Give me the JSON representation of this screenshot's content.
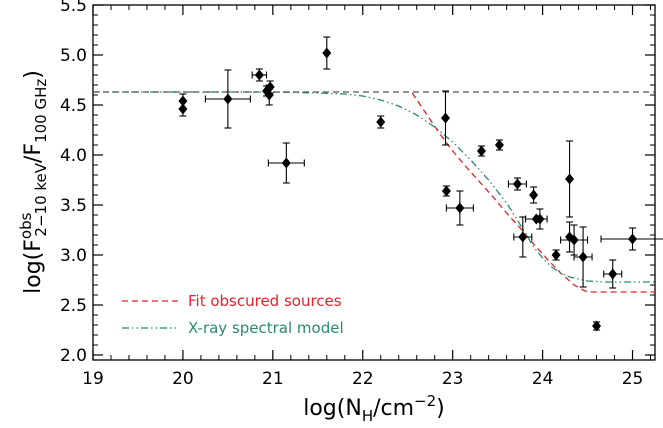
{
  "chart_data": {
    "type": "scatter",
    "xlabel": {
      "pre": "log(N",
      "sub": "H",
      "mid": "/cm",
      "sup": "−2",
      "post": ")"
    },
    "ylabel": {
      "pre": "log(F",
      "sup": "obs",
      "sub": "2−10 keV",
      "mid": "/F",
      "sub2": "100 GHz",
      "post": ")"
    },
    "xlim": [
      19,
      25.25
    ],
    "ylim": [
      1.95,
      5.5
    ],
    "xticks": [
      19,
      20,
      21,
      22,
      23,
      24,
      25
    ],
    "xtick_labels": [
      "19",
      "20",
      "21",
      "22",
      "23",
      "24",
      "25"
    ],
    "yticks": [
      2.0,
      2.5,
      3.0,
      3.5,
      4.0,
      4.5,
      5.0,
      5.5
    ],
    "ytick_labels": [
      "2.0",
      "2.5",
      "3.0",
      "3.5",
      "4.0",
      "4.5",
      "5.0",
      "5.5"
    ],
    "grid": false,
    "legend_position": "bottom-left",
    "colors": {
      "points": "#000000",
      "fit": "#e8202a",
      "model": "#2a8a74",
      "reference": "#555555"
    },
    "points": [
      {
        "x": 20.0,
        "y": 4.54,
        "yerr": 0.07
      },
      {
        "x": 20.0,
        "y": 4.46,
        "yerr": 0.07
      },
      {
        "x": 20.5,
        "y": 4.56,
        "xerr": 0.25,
        "yerr": 0.29
      },
      {
        "x": 20.85,
        "y": 4.8,
        "xerr": 0.08,
        "yerr": 0.06
      },
      {
        "x": 20.93,
        "y": 4.64,
        "yerr": 0.05
      },
      {
        "x": 20.97,
        "y": 4.68,
        "yerr": 0.06
      },
      {
        "x": 20.96,
        "y": 4.6,
        "yerr": 0.1
      },
      {
        "x": 21.15,
        "y": 3.92,
        "xerr": 0.2,
        "yerr": 0.2
      },
      {
        "x": 21.6,
        "y": 5.02,
        "yerr": 0.16
      },
      {
        "x": 22.2,
        "y": 4.33,
        "yerr": 0.06
      },
      {
        "x": 22.92,
        "y": 4.37,
        "yerr": 0.27
      },
      {
        "x": 22.93,
        "y": 3.64,
        "yerr": 0.05
      },
      {
        "x": 23.08,
        "y": 3.47,
        "xerr": 0.15,
        "yerr": 0.17
      },
      {
        "x": 23.32,
        "y": 4.04,
        "yerr": 0.05
      },
      {
        "x": 23.52,
        "y": 4.1,
        "yerr": 0.05
      },
      {
        "x": 23.72,
        "y": 3.71,
        "xerr": 0.1,
        "yerr": 0.06
      },
      {
        "x": 23.78,
        "y": 3.18,
        "xerr": 0.1,
        "yerr": 0.2
      },
      {
        "x": 23.9,
        "y": 3.6,
        "yerr": 0.08
      },
      {
        "x": 23.97,
        "y": 3.36,
        "yerr": 0.1
      },
      {
        "x": 23.93,
        "y": 3.36,
        "xerr": 0.12
      },
      {
        "x": 24.15,
        "y": 3.0,
        "yerr": 0.05
      },
      {
        "x": 24.3,
        "y": 3.76,
        "yerr": 0.38
      },
      {
        "x": 24.3,
        "y": 3.18,
        "yerr": 0.15
      },
      {
        "x": 24.35,
        "y": 3.15,
        "xerr": 0.15,
        "yerr": 0.15
      },
      {
        "x": 24.45,
        "y": 2.98,
        "xerr": 0.1,
        "yerr": 0.3
      },
      {
        "x": 24.6,
        "y": 2.29,
        "yerr": 0.04
      },
      {
        "x": 24.78,
        "y": 2.81,
        "xerr": 0.1,
        "yerr": 0.14
      },
      {
        "x": 25.0,
        "y": 3.16,
        "xerr": 0.35,
        "yerr": 0.11
      }
    ],
    "series": [
      {
        "name": "Fit obscured sources",
        "style": "dashed",
        "x": [
          22.55,
          22.7,
          22.85,
          23.0,
          23.15,
          23.3,
          23.45,
          23.6,
          23.75,
          23.9,
          24.05,
          24.2,
          24.35,
          24.45,
          24.5,
          25.25
        ],
        "y": [
          4.62,
          4.42,
          4.22,
          4.04,
          3.88,
          3.73,
          3.58,
          3.42,
          3.27,
          3.11,
          2.96,
          2.82,
          2.7,
          2.65,
          2.63,
          2.63
        ]
      },
      {
        "name": "X-ray spectral model",
        "style": "dash-dot-dot",
        "x": [
          19.0,
          20.0,
          21.0,
          21.5,
          21.8,
          22.0,
          22.2,
          22.4,
          22.6,
          22.8,
          23.0,
          23.2,
          23.4,
          23.6,
          23.7,
          23.8,
          23.9,
          24.0,
          24.1,
          24.2,
          24.3,
          24.4,
          24.5,
          24.7,
          25.0,
          25.25
        ],
        "y": [
          4.63,
          4.63,
          4.63,
          4.62,
          4.61,
          4.59,
          4.55,
          4.49,
          4.4,
          4.28,
          4.13,
          3.95,
          3.75,
          3.52,
          3.38,
          3.23,
          3.08,
          2.97,
          2.88,
          2.82,
          2.78,
          2.76,
          2.74,
          2.73,
          2.73,
          2.73
        ]
      },
      {
        "style": "dashed",
        "x": [
          19.0,
          25.25
        ],
        "y": [
          4.63,
          4.63
        ]
      }
    ]
  }
}
